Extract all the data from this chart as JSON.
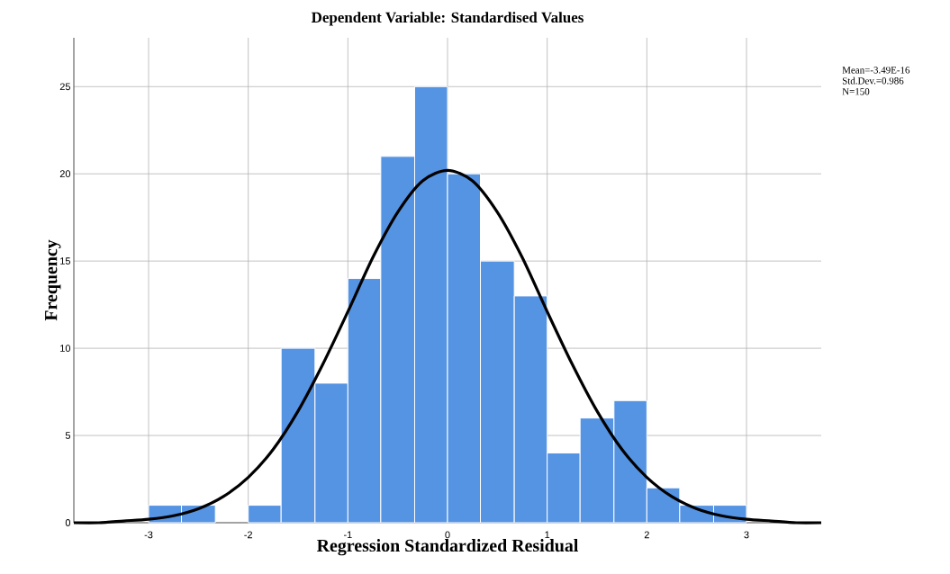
{
  "chart_data": {
    "type": "histogram",
    "title": "Dependent Variable: Standardised Values",
    "xlabel": "Regression Standardized Residual",
    "ylabel": "Frequency",
    "bins": [
      -3,
      -2.67,
      -2.33,
      -2,
      -1.67,
      -1.33,
      -1,
      -0.67,
      -0.33,
      0,
      0.33,
      0.67,
      1,
      1.33,
      1.67,
      2,
      2.33,
      2.67,
      3
    ],
    "series": [
      {
        "color": "#5593e3",
        "values": [
          1,
          1,
          0,
          1,
          10,
          8,
          14,
          21,
          25,
          20,
          15,
          13,
          4,
          6,
          7,
          2,
          1,
          1
        ]
      },
      {
        "type": "line",
        "color": "#000000",
        "x": [
          -3.75,
          -3.5,
          -3.25,
          -3,
          -2.75,
          -2.5,
          -2.25,
          -2,
          -1.75,
          -1.5,
          -1.25,
          -1,
          -0.75,
          -0.5,
          -0.25,
          0,
          0.25,
          0.5,
          0.75,
          1,
          1.25,
          1.5,
          1.75,
          2,
          2.25,
          2.5,
          2.75,
          3,
          3.25,
          3.5,
          3.75
        ],
        "values": [
          0.0,
          0.0,
          0.1,
          0.2,
          0.4,
          0.8,
          1.5,
          2.6,
          4.2,
          6.4,
          9.1,
          12.1,
          15.2,
          17.8,
          19.6,
          20.2,
          19.6,
          17.8,
          15.2,
          12.1,
          9.1,
          6.4,
          4.2,
          2.6,
          1.5,
          0.8,
          0.4,
          0.2,
          0.1,
          0.0,
          0.0
        ]
      }
    ],
    "xlim": [
      -3.75,
      3.75
    ],
    "ylim": [
      0,
      27.8
    ],
    "xticks": [
      -3,
      -2,
      -1,
      0,
      1,
      2,
      3
    ],
    "yticks": [
      0,
      5,
      10,
      15,
      20,
      25
    ],
    "grid": true,
    "annotations": [
      "Mean=-3.49E-16",
      "Std.Dev.=0.986",
      "N=150"
    ]
  }
}
